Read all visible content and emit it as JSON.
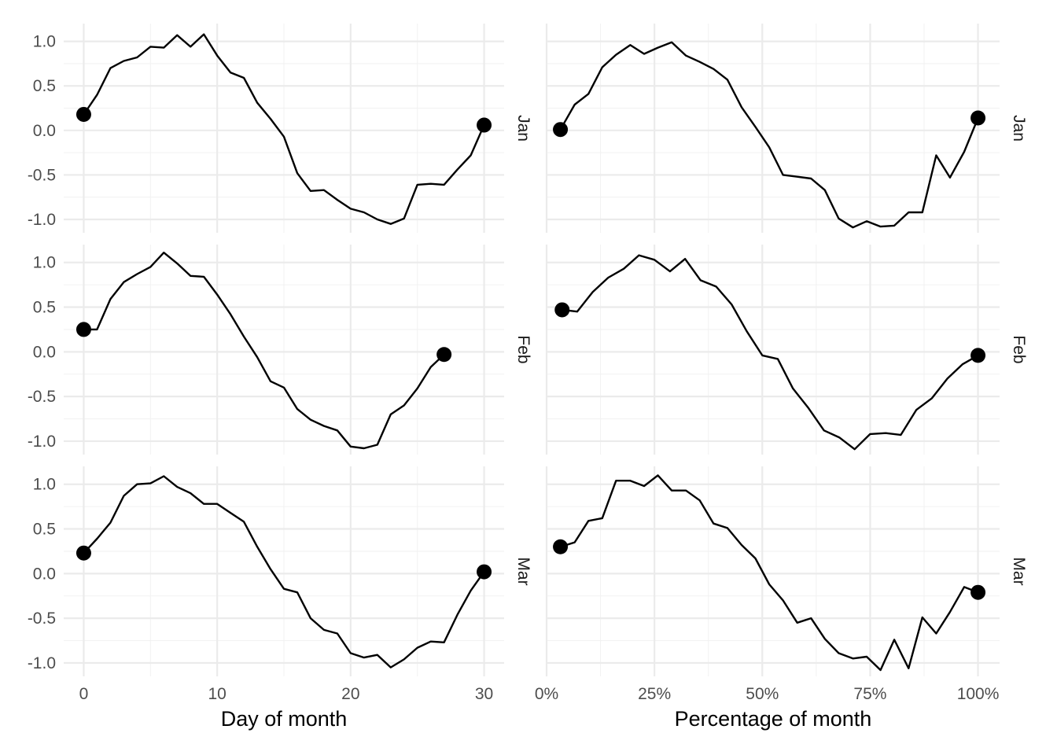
{
  "chart_data": {
    "type": "line",
    "layout": "facet-grid",
    "rows": [
      "Jan",
      "Feb",
      "Mar"
    ],
    "y_ticks": [
      1.0,
      0.5,
      0.0,
      -0.5,
      -1.0
    ],
    "y_tick_labels": [
      "1.0",
      "0.5",
      "0.0",
      "-0.5",
      "-1.0"
    ],
    "ylim": [
      -1.15,
      1.2
    ],
    "endpoint_markers": true,
    "grid": true,
    "columns": [
      {
        "xlabel": "Day of month",
        "xlim": [
          -1.5,
          31.5
        ],
        "x_ticks": [
          0,
          10,
          20,
          30
        ],
        "x_tick_labels": [
          "0",
          "10",
          "20",
          "30"
        ],
        "panels": [
          {
            "row": "Jan",
            "x": [
              0,
              1,
              2,
              3,
              4,
              5,
              6,
              7,
              8,
              9,
              10,
              11,
              12,
              13,
              14,
              15,
              16,
              17,
              18,
              19,
              20,
              21,
              22,
              23,
              24,
              25,
              26,
              27,
              28,
              29,
              30
            ],
            "y": [
              0.18,
              0.4,
              0.7,
              0.78,
              0.82,
              0.94,
              0.93,
              1.07,
              0.94,
              1.08,
              0.84,
              0.65,
              0.59,
              0.31,
              0.13,
              -0.07,
              -0.48,
              -0.68,
              -0.67,
              -0.78,
              -0.88,
              -0.92,
              -1.0,
              -1.05,
              -0.99,
              -0.61,
              -0.6,
              -0.61,
              -0.44,
              -0.28,
              0.06
            ]
          },
          {
            "row": "Feb",
            "x": [
              0,
              1,
              2,
              3,
              4,
              5,
              6,
              7,
              8,
              9,
              10,
              11,
              12,
              13,
              14,
              15,
              16,
              17,
              18,
              19,
              20,
              21,
              22,
              23,
              24,
              25,
              26,
              27
            ],
            "y": [
              0.25,
              0.25,
              0.59,
              0.78,
              0.87,
              0.95,
              1.11,
              0.99,
              0.85,
              0.84,
              0.64,
              0.42,
              0.17,
              -0.06,
              -0.33,
              -0.4,
              -0.64,
              -0.76,
              -0.83,
              -0.88,
              -1.06,
              -1.08,
              -1.04,
              -0.7,
              -0.6,
              -0.41,
              -0.17,
              -0.03
            ]
          },
          {
            "row": "Mar",
            "x": [
              0,
              1,
              2,
              3,
              4,
              5,
              6,
              7,
              8,
              9,
              10,
              11,
              12,
              13,
              14,
              15,
              16,
              17,
              18,
              19,
              20,
              21,
              22,
              23,
              24,
              25,
              26,
              27,
              28,
              29,
              30
            ],
            "y": [
              0.23,
              0.39,
              0.57,
              0.87,
              1.0,
              1.01,
              1.09,
              0.97,
              0.9,
              0.78,
              0.78,
              0.68,
              0.58,
              0.3,
              0.05,
              -0.17,
              -0.21,
              -0.5,
              -0.63,
              -0.67,
              -0.89,
              -0.94,
              -0.91,
              -1.05,
              -0.96,
              -0.83,
              -0.76,
              -0.77,
              -0.46,
              -0.19,
              0.02
            ]
          }
        ]
      },
      {
        "xlabel": "Percentage of month",
        "xlim": [
          0,
          1.05
        ],
        "x_ticks": [
          0,
          0.25,
          0.5,
          0.75,
          1.0
        ],
        "x_tick_labels": [
          "0%",
          "25%",
          "50%",
          "75%",
          "100%"
        ],
        "panels": [
          {
            "row": "Jan",
            "x": [
              0.032,
              0.065,
              0.097,
              0.129,
              0.161,
              0.194,
              0.226,
              0.258,
              0.29,
              0.323,
              0.355,
              0.387,
              0.419,
              0.452,
              0.484,
              0.516,
              0.548,
              0.581,
              0.613,
              0.645,
              0.677,
              0.71,
              0.742,
              0.774,
              0.806,
              0.839,
              0.871,
              0.903,
              0.935,
              0.968,
              1.0
            ],
            "y": [
              0.01,
              0.29,
              0.41,
              0.71,
              0.85,
              0.96,
              0.86,
              0.93,
              0.99,
              0.84,
              0.77,
              0.69,
              0.57,
              0.26,
              0.04,
              -0.19,
              -0.5,
              -0.52,
              -0.54,
              -0.67,
              -0.99,
              -1.09,
              -1.02,
              -1.08,
              -1.07,
              -0.92,
              -0.92,
              -0.28,
              -0.53,
              -0.24,
              0.14
            ]
          },
          {
            "row": "Feb",
            "x": [
              0.036,
              0.071,
              0.107,
              0.143,
              0.179,
              0.214,
              0.25,
              0.286,
              0.321,
              0.357,
              0.393,
              0.429,
              0.464,
              0.5,
              0.536,
              0.571,
              0.607,
              0.643,
              0.679,
              0.714,
              0.75,
              0.786,
              0.821,
              0.857,
              0.893,
              0.929,
              0.964,
              1.0
            ],
            "y": [
              0.47,
              0.45,
              0.67,
              0.83,
              0.93,
              1.08,
              1.03,
              0.9,
              1.04,
              0.8,
              0.73,
              0.53,
              0.23,
              -0.04,
              -0.08,
              -0.41,
              -0.63,
              -0.88,
              -0.96,
              -1.09,
              -0.92,
              -0.91,
              -0.93,
              -0.65,
              -0.52,
              -0.3,
              -0.14,
              -0.04
            ]
          },
          {
            "row": "Mar",
            "x": [
              0.032,
              0.065,
              0.097,
              0.129,
              0.161,
              0.194,
              0.226,
              0.258,
              0.29,
              0.323,
              0.355,
              0.387,
              0.419,
              0.452,
              0.484,
              0.516,
              0.548,
              0.581,
              0.613,
              0.645,
              0.677,
              0.71,
              0.742,
              0.774,
              0.806,
              0.839,
              0.871,
              0.903,
              0.935,
              0.968,
              1.0
            ],
            "y": [
              0.3,
              0.35,
              0.59,
              0.62,
              1.04,
              1.04,
              0.98,
              1.1,
              0.93,
              0.93,
              0.82,
              0.56,
              0.51,
              0.32,
              0.17,
              -0.12,
              -0.3,
              -0.55,
              -0.5,
              -0.73,
              -0.89,
              -0.95,
              -0.93,
              -1.08,
              -0.74,
              -1.06,
              -0.49,
              -0.67,
              -0.43,
              -0.15,
              -0.21
            ]
          }
        ]
      }
    ]
  }
}
